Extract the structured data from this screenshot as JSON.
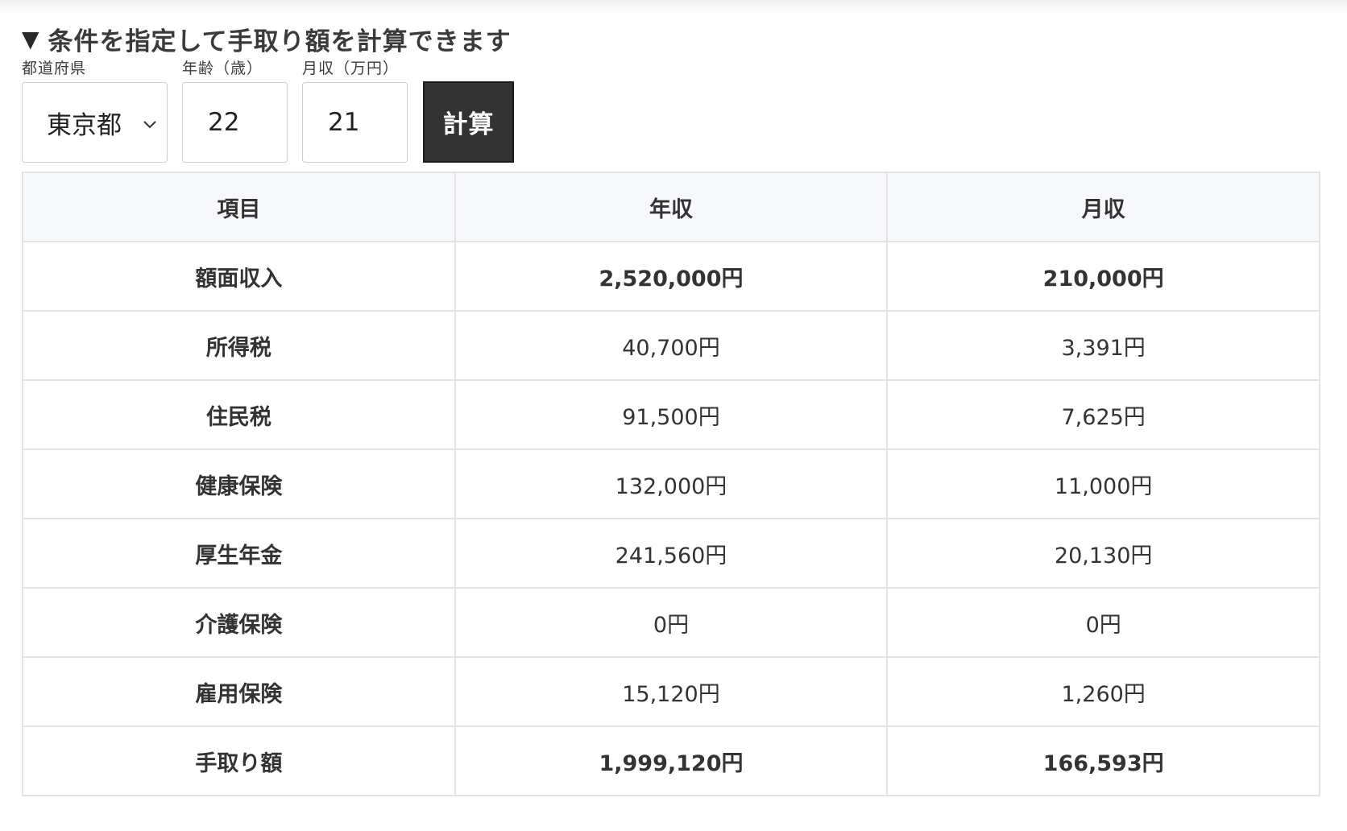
{
  "heading": {
    "marker": "▼",
    "title": "条件を指定して手取り額を計算できます"
  },
  "form": {
    "prefecture": {
      "label": "都道府県",
      "value": "東京都"
    },
    "age": {
      "label": "年齢（歳）",
      "value": "22"
    },
    "monthly_income": {
      "label": "月収（万円）",
      "value": "21"
    },
    "calc_button": "計算"
  },
  "table": {
    "headers": [
      "項目",
      "年収",
      "月収"
    ],
    "rows": [
      {
        "item": "額面収入",
        "annual": "2,520,000円",
        "monthly": "210,000円",
        "bold": true
      },
      {
        "item": "所得税",
        "annual": "40,700円",
        "monthly": "3,391円",
        "bold": false
      },
      {
        "item": "住民税",
        "annual": "91,500円",
        "monthly": "7,625円",
        "bold": false
      },
      {
        "item": "健康保険",
        "annual": "132,000円",
        "monthly": "11,000円",
        "bold": false
      },
      {
        "item": "厚生年金",
        "annual": "241,560円",
        "monthly": "20,130円",
        "bold": false
      },
      {
        "item": "介護保険",
        "annual": "0円",
        "monthly": "0円",
        "bold": false
      },
      {
        "item": "雇用保険",
        "annual": "15,120円",
        "monthly": "1,260円",
        "bold": false
      },
      {
        "item": "手取り額",
        "annual": "1,999,120円",
        "monthly": "166,593円",
        "bold": true
      }
    ]
  },
  "colors": {
    "button_bg": "#333333",
    "header_bg": "#f7f8fc",
    "border": "#e3e3e3"
  }
}
